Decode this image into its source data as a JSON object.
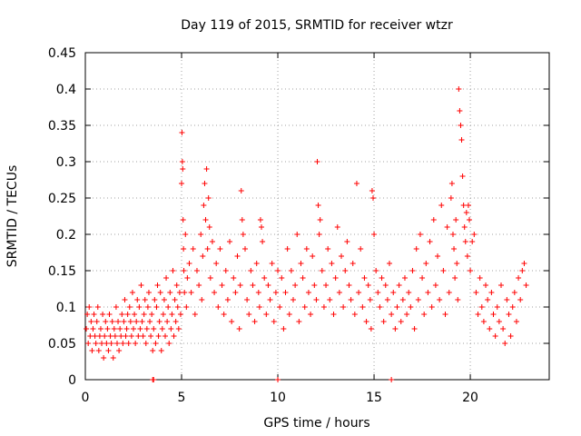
{
  "chart_data": {
    "type": "scatter",
    "title": "Day 119 of 2015, SRMTID for receiver wtzr",
    "xlabel": "GPS time / hours",
    "ylabel": "SRMTID / TECUs",
    "xlim": [
      0,
      24.1
    ],
    "ylim": [
      0,
      0.45
    ],
    "xticks": [
      "0",
      "5",
      "10",
      "15",
      "20"
    ],
    "xtick_values": [
      0,
      5,
      10,
      15,
      20
    ],
    "yticks": [
      "0",
      "0.05",
      "0.1",
      "0.15",
      "0.2",
      "0.25",
      "0.3",
      "0.35",
      "0.4",
      "0.45"
    ],
    "ytick_values": [
      0,
      0.05,
      0.1,
      0.15,
      0.2,
      0.25,
      0.3,
      0.35,
      0.4,
      0.45
    ],
    "grid": true,
    "marker": "+",
    "color": "#ff0000",
    "series": [
      {
        "name": "SRMTID",
        "x": [
          0.05,
          0.1,
          0.15,
          0.2,
          0.25,
          0.3,
          0.35,
          0.4,
          0.45,
          0.5,
          0.55,
          0.6,
          0.65,
          0.7,
          0.75,
          0.8,
          0.85,
          0.9,
          0.95,
          1.0,
          1.05,
          1.1,
          1.15,
          1.2,
          1.25,
          1.3,
          1.35,
          1.4,
          1.45,
          1.5,
          1.55,
          1.6,
          1.65,
          1.7,
          1.75,
          1.8,
          1.85,
          1.9,
          1.95,
          2.0,
          2.05,
          2.1,
          2.15,
          2.2,
          2.25,
          2.3,
          2.35,
          2.4,
          2.45,
          2.5,
          2.55,
          2.6,
          2.65,
          2.7,
          2.75,
          2.8,
          2.85,
          2.9,
          2.95,
          3.0,
          3.05,
          3.1,
          3.15,
          3.2,
          3.25,
          3.3,
          3.35,
          3.4,
          3.45,
          3.5,
          3.55,
          3.6,
          3.65,
          3.7,
          3.75,
          3.8,
          3.85,
          3.9,
          3.95,
          4.0,
          4.05,
          4.1,
          4.15,
          4.2,
          4.25,
          4.3,
          4.35,
          4.4,
          4.45,
          4.5,
          4.55,
          4.6,
          4.65,
          4.7,
          4.75,
          4.8,
          4.85,
          4.9,
          4.95,
          5.0,
          5.02,
          5.04,
          5.06,
          5.08,
          5.1,
          5.12,
          5.15,
          5.2,
          5.25,
          5.3,
          5.4,
          5.5,
          5.6,
          5.7,
          5.8,
          5.9,
          6.0,
          6.05,
          6.1,
          6.15,
          6.2,
          6.25,
          6.3,
          6.35,
          6.4,
          6.45,
          6.5,
          6.6,
          6.7,
          6.8,
          6.9,
          7.0,
          7.1,
          7.2,
          7.3,
          7.4,
          7.5,
          7.6,
          7.7,
          7.8,
          7.9,
          8.0,
          8.05,
          8.1,
          8.15,
          8.2,
          8.3,
          8.4,
          8.5,
          8.6,
          8.7,
          8.8,
          8.9,
          9.0,
          9.05,
          9.1,
          9.15,
          9.2,
          9.3,
          9.4,
          9.5,
          9.6,
          9.7,
          9.8,
          9.9,
          10.0,
          10.1,
          10.2,
          10.3,
          10.4,
          10.5,
          10.6,
          10.7,
          10.8,
          10.9,
          11.0,
          11.1,
          11.2,
          11.3,
          11.4,
          11.5,
          11.6,
          11.7,
          11.8,
          11.9,
          12.0,
          12.05,
          12.1,
          12.15,
          12.2,
          12.3,
          12.4,
          12.5,
          12.6,
          12.7,
          12.8,
          12.9,
          13.0,
          13.1,
          13.2,
          13.3,
          13.4,
          13.5,
          13.6,
          13.7,
          13.8,
          13.9,
          14.0,
          14.1,
          14.2,
          14.3,
          14.4,
          14.5,
          14.6,
          14.7,
          14.8,
          14.85,
          14.9,
          14.95,
          15.0,
          15.1,
          15.2,
          15.3,
          15.4,
          15.5,
          15.6,
          15.7,
          15.8,
          15.9,
          16.0,
          16.1,
          16.2,
          16.3,
          16.4,
          16.5,
          16.6,
          16.7,
          16.8,
          16.9,
          17.0,
          17.1,
          17.2,
          17.3,
          17.4,
          17.5,
          17.6,
          17.7,
          17.8,
          17.9,
          18.0,
          18.1,
          18.2,
          18.3,
          18.4,
          18.5,
          18.6,
          18.7,
          18.8,
          18.9,
          19.0,
          19.05,
          19.1,
          19.15,
          19.2,
          19.25,
          19.3,
          19.35,
          19.4,
          19.45,
          19.5,
          19.55,
          19.6,
          19.65,
          19.7,
          19.75,
          19.8,
          19.85,
          19.9,
          19.95,
          20.0,
          20.1,
          20.2,
          20.3,
          20.4,
          20.5,
          20.6,
          20.7,
          20.8,
          20.9,
          21.0,
          21.1,
          21.2,
          21.3,
          21.4,
          21.5,
          21.6,
          21.7,
          21.8,
          21.9,
          22.0,
          22.1,
          22.2,
          22.3,
          22.4,
          22.5,
          22.6,
          22.7,
          22.8,
          22.9,
          3.5,
          3.55,
          10.0,
          15.9
        ],
        "y": [
          0.07,
          0.09,
          0.05,
          0.1,
          0.06,
          0.08,
          0.04,
          0.07,
          0.09,
          0.06,
          0.05,
          0.08,
          0.1,
          0.04,
          0.06,
          0.07,
          0.05,
          0.09,
          0.03,
          0.06,
          0.08,
          0.05,
          0.07,
          0.04,
          0.09,
          0.06,
          0.05,
          0.08,
          0.03,
          0.07,
          0.06,
          0.1,
          0.05,
          0.08,
          0.04,
          0.07,
          0.06,
          0.09,
          0.05,
          0.08,
          0.11,
          0.06,
          0.07,
          0.09,
          0.05,
          0.1,
          0.08,
          0.06,
          0.12,
          0.07,
          0.09,
          0.05,
          0.08,
          0.11,
          0.06,
          0.1,
          0.07,
          0.13,
          0.08,
          0.06,
          0.09,
          0.11,
          0.05,
          0.07,
          0.1,
          0.12,
          0.08,
          0.06,
          0.09,
          0.04,
          0.07,
          0.11,
          0.05,
          0.1,
          0.13,
          0.06,
          0.08,
          0.12,
          0.04,
          0.07,
          0.09,
          0.11,
          0.06,
          0.14,
          0.08,
          0.1,
          0.05,
          0.12,
          0.07,
          0.09,
          0.15,
          0.06,
          0.11,
          0.08,
          0.13,
          0.1,
          0.07,
          0.12,
          0.09,
          0.27,
          0.34,
          0.3,
          0.29,
          0.22,
          0.18,
          0.15,
          0.12,
          0.2,
          0.1,
          0.14,
          0.16,
          0.12,
          0.18,
          0.09,
          0.15,
          0.13,
          0.2,
          0.11,
          0.17,
          0.24,
          0.27,
          0.22,
          0.29,
          0.18,
          0.25,
          0.21,
          0.14,
          0.19,
          0.12,
          0.16,
          0.1,
          0.18,
          0.13,
          0.09,
          0.15,
          0.11,
          0.19,
          0.08,
          0.14,
          0.12,
          0.17,
          0.07,
          0.13,
          0.26,
          0.22,
          0.2,
          0.18,
          0.11,
          0.09,
          0.15,
          0.13,
          0.08,
          0.16,
          0.12,
          0.1,
          0.22,
          0.21,
          0.19,
          0.14,
          0.09,
          0.13,
          0.11,
          0.16,
          0.08,
          0.12,
          0.15,
          0.1,
          0.14,
          0.07,
          0.12,
          0.18,
          0.09,
          0.15,
          0.11,
          0.13,
          0.2,
          0.08,
          0.16,
          0.14,
          0.1,
          0.18,
          0.12,
          0.09,
          0.17,
          0.13,
          0.11,
          0.3,
          0.24,
          0.2,
          0.22,
          0.15,
          0.1,
          0.13,
          0.18,
          0.11,
          0.16,
          0.09,
          0.14,
          0.21,
          0.12,
          0.17,
          0.1,
          0.15,
          0.19,
          0.13,
          0.11,
          0.16,
          0.09,
          0.27,
          0.12,
          0.18,
          0.1,
          0.14,
          0.08,
          0.13,
          0.11,
          0.07,
          0.26,
          0.25,
          0.2,
          0.15,
          0.12,
          0.1,
          0.14,
          0.08,
          0.13,
          0.11,
          0.16,
          0.09,
          0.12,
          0.07,
          0.1,
          0.13,
          0.08,
          0.11,
          0.14,
          0.09,
          0.12,
          0.1,
          0.15,
          0.07,
          0.18,
          0.11,
          0.2,
          0.14,
          0.09,
          0.16,
          0.12,
          0.19,
          0.1,
          0.22,
          0.13,
          0.17,
          0.11,
          0.24,
          0.15,
          0.09,
          0.21,
          0.12,
          0.25,
          0.27,
          0.2,
          0.18,
          0.14,
          0.22,
          0.16,
          0.11,
          0.4,
          0.37,
          0.35,
          0.33,
          0.28,
          0.24,
          0.21,
          0.19,
          0.23,
          0.17,
          0.24,
          0.22,
          0.15,
          0.19,
          0.2,
          0.12,
          0.09,
          0.14,
          0.1,
          0.08,
          0.13,
          0.11,
          0.07,
          0.12,
          0.09,
          0.06,
          0.1,
          0.08,
          0.13,
          0.07,
          0.05,
          0.11,
          0.09,
          0.06,
          0.1,
          0.12,
          0.08,
          0.14,
          0.11,
          0.15,
          0.16,
          0.13,
          0.0,
          0.0,
          0.0,
          0.0
        ]
      }
    ]
  }
}
